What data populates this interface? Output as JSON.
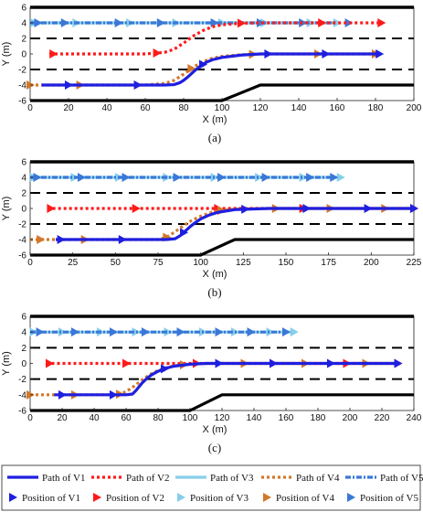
{
  "colors": {
    "V1": "#1f1fe0",
    "V2": "#ff1a1a",
    "V3": "#87ceeb",
    "V4": "#d2782a",
    "V5": "#3a78d8",
    "road": "#000000"
  },
  "legend": {
    "items": [
      {
        "key": "V1",
        "label": "Path of V1",
        "kind": "path",
        "style": "solid"
      },
      {
        "key": "V2",
        "label": "Path of V2",
        "kind": "path",
        "style": "dotted"
      },
      {
        "key": "V3",
        "label": "Path of V3",
        "kind": "path",
        "style": "solid"
      },
      {
        "key": "V4",
        "label": "Path of V4",
        "kind": "path",
        "style": "dotted"
      },
      {
        "key": "V5",
        "label": "Path of V5",
        "kind": "path",
        "style": "dotdash"
      },
      {
        "key": "V1",
        "label": "Position of V1",
        "kind": "marker"
      },
      {
        "key": "V2",
        "label": "Position of V2",
        "kind": "marker"
      },
      {
        "key": "V3",
        "label": "Position of V3",
        "kind": "marker"
      },
      {
        "key": "V4",
        "label": "Position of V4",
        "kind": "marker"
      },
      {
        "key": "V5",
        "label": "Position of V5",
        "kind": "marker"
      }
    ]
  },
  "chart_data": [
    {
      "type": "line",
      "caption": "(a)",
      "xlabel": "X (m)",
      "ylabel": "Y (m)",
      "xlim": [
        0,
        200
      ],
      "ylim": [
        -6,
        6
      ],
      "xticks": [
        0,
        20,
        40,
        60,
        80,
        100,
        120,
        140,
        160,
        180,
        200
      ],
      "yticks": [
        -6,
        -4,
        -2,
        0,
        2,
        4,
        6
      ],
      "road": {
        "lane_lines": [
          2,
          -2
        ],
        "merge_bottom": [
          [
            0,
            -6
          ],
          [
            100,
            -6
          ],
          [
            120,
            -4
          ],
          [
            200,
            -4
          ]
        ]
      },
      "series": [
        {
          "name": "V3",
          "x": [
            0,
            20,
            40,
            60,
            80,
            100,
            120,
            140,
            160
          ],
          "y": [
            4,
            4,
            4,
            4,
            4,
            4,
            4,
            4,
            4
          ],
          "markers_x": [
            2,
            24,
            52,
            76,
            100,
            122,
            146,
            160
          ]
        },
        {
          "name": "V5",
          "x": [
            0,
            20,
            40,
            60,
            80,
            100,
            120,
            140,
            160
          ],
          "y": [
            4,
            4,
            4,
            4,
            4,
            4,
            4,
            4,
            4
          ],
          "markers_x": [
            4,
            18,
            46,
            68,
            96,
            120,
            142,
            166
          ]
        },
        {
          "name": "V2",
          "x": [
            10,
            60,
            70,
            75,
            80,
            85,
            90,
            95,
            100,
            110,
            120,
            140,
            183
          ],
          "y": [
            0,
            0,
            0.2,
            0.6,
            1.4,
            2.3,
            3.0,
            3.5,
            3.75,
            3.95,
            4,
            4,
            4
          ],
          "markers_x": [
            12,
            66,
            110,
            152,
            183
          ]
        },
        {
          "name": "V4",
          "x": [
            0,
            60,
            70,
            75,
            80,
            85,
            90,
            95,
            100,
            110,
            120,
            140,
            180
          ],
          "y": [
            -4,
            -4,
            -3.8,
            -3.4,
            -2.6,
            -1.7,
            -1.0,
            -0.55,
            -0.3,
            -0.1,
            0,
            0,
            0
          ],
          "markers_x": [
            0,
            26,
            56,
            84,
            116,
            150,
            180
          ]
        },
        {
          "name": "V1",
          "x": [
            6,
            70,
            75,
            78,
            80,
            82,
            84,
            86,
            88,
            90,
            92,
            95,
            100,
            110,
            120,
            140,
            182
          ],
          "y": [
            -4,
            -4,
            -3.95,
            -3.7,
            -3.4,
            -3.0,
            -2.55,
            -2.1,
            -1.7,
            -1.35,
            -1.05,
            -0.75,
            -0.45,
            -0.15,
            0,
            0,
            0
          ],
          "markers_x": [
            20,
            56,
            90,
            124,
            154,
            182
          ]
        }
      ]
    },
    {
      "type": "line",
      "caption": "(b)",
      "xlabel": "X (m)",
      "ylabel": "Y (m)",
      "xlim": [
        0,
        225
      ],
      "ylim": [
        -6,
        6
      ],
      "xticks": [
        0,
        25,
        50,
        75,
        100,
        125,
        150,
        175,
        200,
        225
      ],
      "yticks": [
        -6,
        -4,
        -2,
        0,
        2,
        4,
        6
      ],
      "road": {
        "lane_lines": [
          2,
          -2
        ],
        "merge_bottom": [
          [
            0,
            -6
          ],
          [
            100,
            -6
          ],
          [
            120,
            -4
          ],
          [
            225,
            -4
          ]
        ]
      },
      "series": [
        {
          "name": "V3",
          "x": [
            0,
            50,
            100,
            150,
            182
          ],
          "y": [
            4,
            4,
            4,
            4,
            4
          ],
          "markers_x": [
            2,
            26,
            52,
            80,
            108,
            134,
            160,
            182
          ]
        },
        {
          "name": "V5",
          "x": [
            0,
            50,
            100,
            150,
            178
          ],
          "y": [
            4,
            4,
            4,
            4,
            4
          ],
          "markers_x": [
            4,
            30,
            56,
            86,
            112,
            138,
            164,
            178
          ]
        },
        {
          "name": "V2",
          "x": [
            10,
            70,
            225
          ],
          "y": [
            0,
            0,
            0
          ],
          "markers_x": [
            12,
            62,
            110,
            160,
            225
          ]
        },
        {
          "name": "V4",
          "x": [
            0,
            75,
            80,
            85,
            90,
            95,
            100,
            105,
            110,
            120,
            140,
            225
          ],
          "y": [
            -4,
            -4,
            -3.7,
            -3.0,
            -2.2,
            -1.5,
            -1.0,
            -0.6,
            -0.3,
            -0.1,
            0,
            0
          ],
          "markers_x": [
            6,
            32,
            80,
            112,
            144,
            176,
            208
          ]
        },
        {
          "name": "V1",
          "x": [
            15,
            80,
            85,
            88,
            91,
            94,
            97,
            100,
            105,
            110,
            120,
            140,
            225
          ],
          "y": [
            -4,
            -4,
            -3.9,
            -3.5,
            -2.9,
            -2.3,
            -1.8,
            -1.35,
            -0.85,
            -0.5,
            -0.15,
            0,
            0
          ],
          "markers_x": [
            18,
            54,
            90,
            126,
            162,
            198,
            225
          ]
        }
      ]
    },
    {
      "type": "line",
      "caption": "(c)",
      "xlabel": "X (m)",
      "ylabel": "Y (m)",
      "xlim": [
        0,
        240
      ],
      "ylim": [
        -6,
        6
      ],
      "xticks": [
        0,
        20,
        40,
        60,
        80,
        100,
        120,
        140,
        160,
        180,
        200,
        220,
        240
      ],
      "yticks": [
        -6,
        -4,
        -2,
        0,
        2,
        4,
        6
      ],
      "road": {
        "lane_lines": [
          2,
          -2
        ],
        "merge_bottom": [
          [
            0,
            -6
          ],
          [
            100,
            -6
          ],
          [
            120,
            -4
          ],
          [
            240,
            -4
          ]
        ]
      },
      "series": [
        {
          "name": "V3",
          "x": [
            0,
            40,
            80,
            120,
            165
          ],
          "y": [
            4,
            4,
            4,
            4,
            4
          ],
          "markers_x": [
            2,
            20,
            44,
            66,
            86,
            108,
            128,
            150,
            165
          ]
        },
        {
          "name": "V5",
          "x": [
            0,
            40,
            80,
            120,
            160
          ],
          "y": [
            4,
            4,
            4,
            4,
            4
          ],
          "markers_x": [
            6,
            28,
            52,
            72,
            94,
            118,
            138,
            160
          ]
        },
        {
          "name": "V2",
          "x": [
            10,
            60,
            230
          ],
          "y": [
            0,
            0,
            0
          ],
          "markers_x": [
            12,
            60,
            104,
            152,
            198,
            230
          ]
        },
        {
          "name": "V4",
          "x": [
            0,
            55,
            60,
            65,
            70,
            75,
            80,
            85,
            90,
            100,
            110,
            230
          ],
          "y": [
            -4,
            -4,
            -3.6,
            -2.9,
            -2.1,
            -1.4,
            -0.9,
            -0.55,
            -0.3,
            -0.1,
            0,
            0
          ],
          "markers_x": [
            0,
            28,
            56,
            96,
            134,
            172,
            210
          ]
        },
        {
          "name": "V1",
          "x": [
            15,
            60,
            64,
            66,
            68,
            70,
            73,
            76,
            80,
            85,
            90,
            100,
            110,
            230
          ],
          "y": [
            -4,
            -4,
            -3.9,
            -3.5,
            -3.0,
            -2.5,
            -1.9,
            -1.45,
            -1.0,
            -0.6,
            -0.35,
            -0.1,
            0,
            0
          ],
          "markers_x": [
            20,
            52,
            84,
            118,
            152,
            188,
            230
          ]
        }
      ]
    }
  ]
}
